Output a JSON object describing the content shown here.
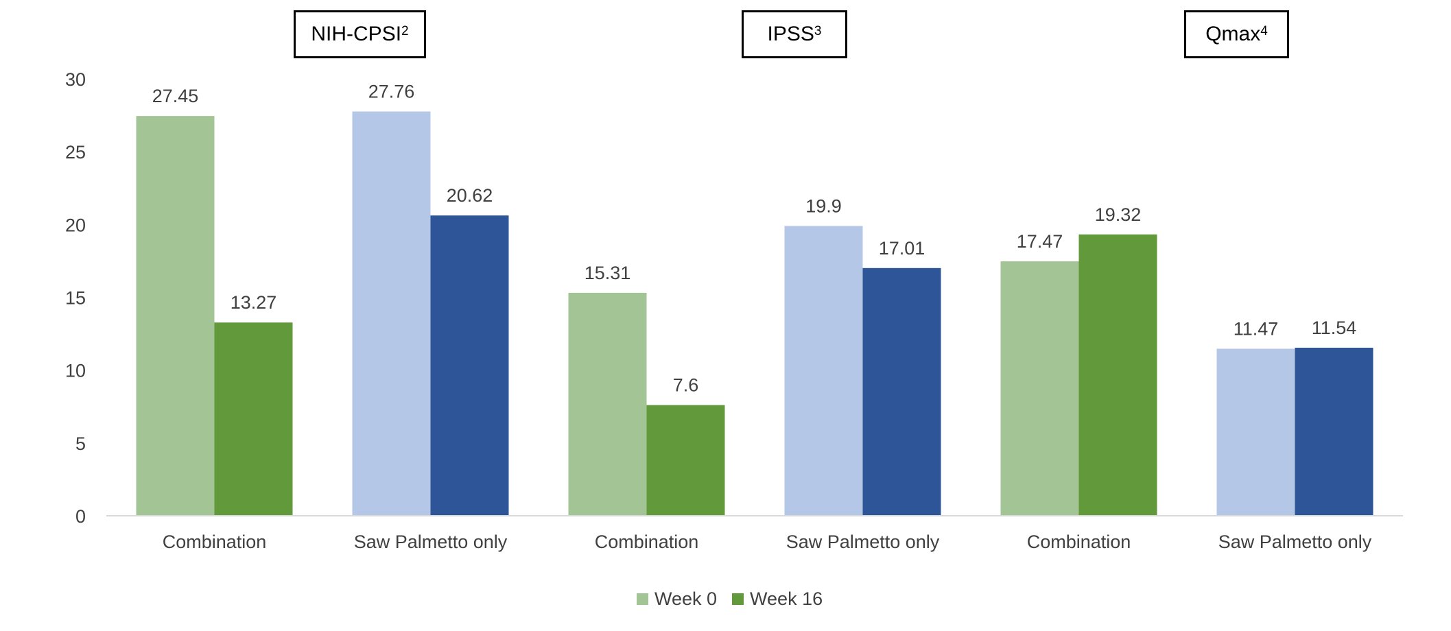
{
  "chart_data": {
    "type": "bar",
    "title": "",
    "xlabel": "",
    "ylabel": "",
    "ylim": [
      0,
      30
    ],
    "yticks": [
      0,
      5,
      10,
      15,
      20,
      25,
      30
    ],
    "grid": false,
    "legend_position": "bottom",
    "panels": [
      {
        "name": "NIH-CPSI",
        "superscript": "2"
      },
      {
        "name": "IPSS",
        "superscript": "3"
      },
      {
        "name": "Qmax",
        "superscript": "4"
      }
    ],
    "series": [
      {
        "name": "Week 0",
        "color": "#a3c494"
      },
      {
        "name": "Week 16",
        "color": "#62993b"
      }
    ],
    "groups": [
      {
        "panel": 0,
        "category": "Combination",
        "palette": "green",
        "values": [
          27.45,
          13.27
        ],
        "labels": [
          "27.45",
          "13.27"
        ]
      },
      {
        "panel": 0,
        "category": "Saw Palmetto only",
        "palette": "blue",
        "values": [
          27.76,
          20.62
        ],
        "labels": [
          "27.76",
          "20.62"
        ]
      },
      {
        "panel": 1,
        "category": "Combination",
        "palette": "green",
        "values": [
          15.31,
          7.6
        ],
        "labels": [
          "15.31",
          "7.6"
        ]
      },
      {
        "panel": 1,
        "category": "Saw Palmetto only",
        "palette": "blue",
        "values": [
          19.9,
          17.01
        ],
        "labels": [
          "19.9",
          "17.01"
        ]
      },
      {
        "panel": 2,
        "category": "Combination",
        "palette": "green",
        "values": [
          17.47,
          19.32
        ],
        "labels": [
          "17.47",
          "19.32"
        ]
      },
      {
        "panel": 2,
        "category": "Saw Palmetto only",
        "palette": "blue",
        "values": [
          11.47,
          11.54
        ],
        "labels": [
          "11.47",
          "11.54"
        ]
      }
    ],
    "palettes": {
      "green": [
        "#a3c494",
        "#62993b"
      ],
      "blue": [
        "#b4c7e7",
        "#2e5597"
      ]
    },
    "axis_color": "#d9d9d9",
    "text_color": "#404040"
  }
}
